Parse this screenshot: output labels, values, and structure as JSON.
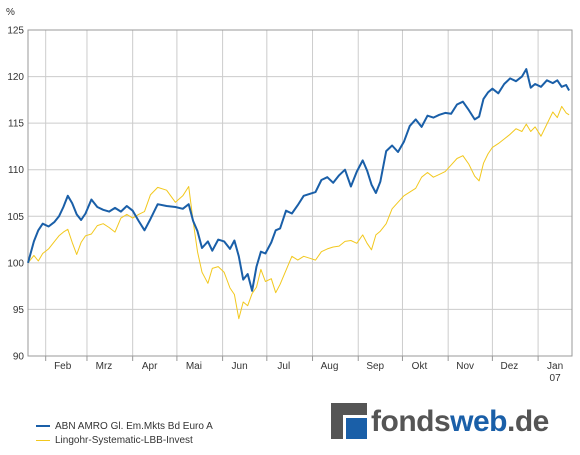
{
  "chart_data": {
    "type": "line",
    "ylabel": "%",
    "ylim": [
      90,
      125
    ],
    "yticks": [
      90,
      95,
      100,
      105,
      110,
      115,
      120,
      125
    ],
    "x_start": "2006-01-20",
    "x_end": "2007-01-24",
    "xticks": [
      {
        "label": "Feb",
        "date": "2006-02-01"
      },
      {
        "label": "Mrz",
        "date": "2006-03-01"
      },
      {
        "label": "Apr",
        "date": "2006-04-01"
      },
      {
        "label": "Mai",
        "date": "2006-05-01"
      },
      {
        "label": "Jun",
        "date": "2006-06-01"
      },
      {
        "label": "Jul",
        "date": "2006-07-01"
      },
      {
        "label": "Aug",
        "date": "2006-08-01"
      },
      {
        "label": "Sep",
        "date": "2006-09-01"
      },
      {
        "label": "Okt",
        "date": "2006-10-01"
      },
      {
        "label": "Nov",
        "date": "2006-11-01"
      },
      {
        "label": "Dez",
        "date": "2006-12-01"
      },
      {
        "label": "Jan",
        "sublabel": "07",
        "date": "2007-01-01"
      }
    ],
    "grid": true,
    "series": [
      {
        "name": "ABN AMRO Gl. Em.Mkts Bd Euro A",
        "color": "#1a5fa8",
        "points": [
          [
            "2006-01-20",
            100.0
          ],
          [
            "2006-01-24",
            102.3
          ],
          [
            "2006-01-27",
            103.5
          ],
          [
            "2006-01-30",
            104.2
          ],
          [
            "2006-02-03",
            103.9
          ],
          [
            "2006-02-07",
            104.4
          ],
          [
            "2006-02-10",
            105.0
          ],
          [
            "2006-02-13",
            106.0
          ],
          [
            "2006-02-16",
            107.2
          ],
          [
            "2006-02-19",
            106.4
          ],
          [
            "2006-02-22",
            105.2
          ],
          [
            "2006-02-25",
            104.6
          ],
          [
            "2006-02-28",
            105.3
          ],
          [
            "2006-03-04",
            106.8
          ],
          [
            "2006-03-08",
            106.0
          ],
          [
            "2006-03-12",
            105.7
          ],
          [
            "2006-03-16",
            105.5
          ],
          [
            "2006-03-20",
            105.9
          ],
          [
            "2006-03-24",
            105.5
          ],
          [
            "2006-03-28",
            106.1
          ],
          [
            "2006-04-01",
            105.6
          ],
          [
            "2006-04-05",
            104.5
          ],
          [
            "2006-04-09",
            103.5
          ],
          [
            "2006-04-13",
            104.7
          ],
          [
            "2006-04-18",
            106.3
          ],
          [
            "2006-04-24",
            106.1
          ],
          [
            "2006-04-30",
            106.0
          ],
          [
            "2006-05-05",
            105.8
          ],
          [
            "2006-05-09",
            106.3
          ],
          [
            "2006-05-12",
            104.5
          ],
          [
            "2006-05-15",
            103.4
          ],
          [
            "2006-05-18",
            101.6
          ],
          [
            "2006-05-22",
            102.3
          ],
          [
            "2006-05-25",
            101.3
          ],
          [
            "2006-05-29",
            102.5
          ],
          [
            "2006-06-02",
            102.3
          ],
          [
            "2006-06-06",
            101.5
          ],
          [
            "2006-06-09",
            102.4
          ],
          [
            "2006-06-12",
            100.7
          ],
          [
            "2006-06-15",
            98.2
          ],
          [
            "2006-06-18",
            98.8
          ],
          [
            "2006-06-21",
            97.0
          ],
          [
            "2006-06-24",
            99.6
          ],
          [
            "2006-06-27",
            101.2
          ],
          [
            "2006-06-30",
            101.0
          ],
          [
            "2006-07-04",
            102.2
          ],
          [
            "2006-07-07",
            103.5
          ],
          [
            "2006-07-10",
            103.7
          ],
          [
            "2006-07-14",
            105.6
          ],
          [
            "2006-07-18",
            105.3
          ],
          [
            "2006-07-22",
            106.2
          ],
          [
            "2006-07-26",
            107.2
          ],
          [
            "2006-07-30",
            107.4
          ],
          [
            "2006-08-03",
            107.6
          ],
          [
            "2006-08-07",
            108.9
          ],
          [
            "2006-08-11",
            109.2
          ],
          [
            "2006-08-15",
            108.6
          ],
          [
            "2006-08-19",
            109.4
          ],
          [
            "2006-08-23",
            110.0
          ],
          [
            "2006-08-27",
            108.2
          ],
          [
            "2006-08-31",
            109.8
          ],
          [
            "2006-09-04",
            111.0
          ],
          [
            "2006-09-07",
            109.9
          ],
          [
            "2006-09-10",
            108.4
          ],
          [
            "2006-09-13",
            107.5
          ],
          [
            "2006-09-16",
            108.7
          ],
          [
            "2006-09-20",
            112.0
          ],
          [
            "2006-09-24",
            112.6
          ],
          [
            "2006-09-28",
            111.9
          ],
          [
            "2006-10-02",
            113.0
          ],
          [
            "2006-10-06",
            114.7
          ],
          [
            "2006-10-10",
            115.4
          ],
          [
            "2006-10-14",
            114.6
          ],
          [
            "2006-10-18",
            115.8
          ],
          [
            "2006-10-22",
            115.6
          ],
          [
            "2006-10-26",
            115.9
          ],
          [
            "2006-10-30",
            116.1
          ],
          [
            "2006-11-03",
            116.0
          ],
          [
            "2006-11-07",
            117.0
          ],
          [
            "2006-11-11",
            117.3
          ],
          [
            "2006-11-15",
            116.4
          ],
          [
            "2006-11-19",
            115.4
          ],
          [
            "2006-11-22",
            115.7
          ],
          [
            "2006-11-25",
            117.6
          ],
          [
            "2006-11-28",
            118.3
          ],
          [
            "2006-12-01",
            118.7
          ],
          [
            "2006-12-05",
            118.2
          ],
          [
            "2006-12-09",
            119.2
          ],
          [
            "2006-12-13",
            119.8
          ],
          [
            "2006-12-17",
            119.5
          ],
          [
            "2006-12-21",
            120.0
          ],
          [
            "2006-12-24",
            120.8
          ],
          [
            "2006-12-27",
            118.8
          ],
          [
            "2006-12-30",
            119.2
          ],
          [
            "2007-01-03",
            118.9
          ],
          [
            "2007-01-07",
            119.6
          ],
          [
            "2007-01-11",
            119.3
          ],
          [
            "2007-01-14",
            119.6
          ],
          [
            "2007-01-17",
            118.9
          ],
          [
            "2007-01-20",
            119.1
          ],
          [
            "2007-01-22",
            118.5
          ]
        ]
      },
      {
        "name": "Lingohr-Systematic-LBB-Invest",
        "color": "#f2c81e",
        "points": [
          [
            "2006-01-20",
            100.0
          ],
          [
            "2006-01-24",
            100.8
          ],
          [
            "2006-01-27",
            100.2
          ],
          [
            "2006-01-30",
            101.0
          ],
          [
            "2006-02-03",
            101.5
          ],
          [
            "2006-02-07",
            102.3
          ],
          [
            "2006-02-10",
            102.9
          ],
          [
            "2006-02-13",
            103.3
          ],
          [
            "2006-02-16",
            103.6
          ],
          [
            "2006-02-19",
            102.2
          ],
          [
            "2006-02-22",
            100.9
          ],
          [
            "2006-02-25",
            102.2
          ],
          [
            "2006-02-28",
            102.9
          ],
          [
            "2006-03-04",
            103.1
          ],
          [
            "2006-03-08",
            104.0
          ],
          [
            "2006-03-12",
            104.2
          ],
          [
            "2006-03-16",
            103.8
          ],
          [
            "2006-03-20",
            103.3
          ],
          [
            "2006-03-24",
            104.8
          ],
          [
            "2006-03-28",
            105.2
          ],
          [
            "2006-04-01",
            104.8
          ],
          [
            "2006-04-05",
            105.2
          ],
          [
            "2006-04-09",
            105.5
          ],
          [
            "2006-04-13",
            107.3
          ],
          [
            "2006-04-18",
            108.1
          ],
          [
            "2006-04-24",
            107.8
          ],
          [
            "2006-04-30",
            106.5
          ],
          [
            "2006-05-05",
            107.2
          ],
          [
            "2006-05-09",
            108.2
          ],
          [
            "2006-05-12",
            104.5
          ],
          [
            "2006-05-15",
            101.2
          ],
          [
            "2006-05-18",
            99.0
          ],
          [
            "2006-05-22",
            97.8
          ],
          [
            "2006-05-25",
            99.4
          ],
          [
            "2006-05-29",
            99.6
          ],
          [
            "2006-06-02",
            99.0
          ],
          [
            "2006-06-06",
            97.3
          ],
          [
            "2006-06-09",
            96.6
          ],
          [
            "2006-06-12",
            94.0
          ],
          [
            "2006-06-15",
            95.8
          ],
          [
            "2006-06-18",
            95.4
          ],
          [
            "2006-06-21",
            96.7
          ],
          [
            "2006-06-24",
            97.4
          ],
          [
            "2006-06-27",
            99.3
          ],
          [
            "2006-06-30",
            98.0
          ],
          [
            "2006-07-04",
            98.3
          ],
          [
            "2006-07-07",
            96.8
          ],
          [
            "2006-07-10",
            97.7
          ],
          [
            "2006-07-14",
            99.2
          ],
          [
            "2006-07-18",
            100.7
          ],
          [
            "2006-07-22",
            100.3
          ],
          [
            "2006-07-26",
            100.7
          ],
          [
            "2006-07-30",
            100.5
          ],
          [
            "2006-08-03",
            100.3
          ],
          [
            "2006-08-07",
            101.2
          ],
          [
            "2006-08-11",
            101.5
          ],
          [
            "2006-08-15",
            101.7
          ],
          [
            "2006-08-19",
            101.8
          ],
          [
            "2006-08-23",
            102.3
          ],
          [
            "2006-08-27",
            102.4
          ],
          [
            "2006-08-31",
            102.1
          ],
          [
            "2006-09-04",
            103.0
          ],
          [
            "2006-09-07",
            102.1
          ],
          [
            "2006-09-10",
            101.4
          ],
          [
            "2006-09-13",
            103.0
          ],
          [
            "2006-09-16",
            103.4
          ],
          [
            "2006-09-20",
            104.2
          ],
          [
            "2006-09-24",
            105.8
          ],
          [
            "2006-09-28",
            106.5
          ],
          [
            "2006-10-02",
            107.2
          ],
          [
            "2006-10-06",
            107.6
          ],
          [
            "2006-10-10",
            108.0
          ],
          [
            "2006-10-14",
            109.2
          ],
          [
            "2006-10-18",
            109.7
          ],
          [
            "2006-10-22",
            109.2
          ],
          [
            "2006-10-26",
            109.5
          ],
          [
            "2006-10-30",
            109.8
          ],
          [
            "2006-11-03",
            110.5
          ],
          [
            "2006-11-07",
            111.2
          ],
          [
            "2006-11-11",
            111.5
          ],
          [
            "2006-11-15",
            110.6
          ],
          [
            "2006-11-19",
            109.3
          ],
          [
            "2006-11-22",
            108.8
          ],
          [
            "2006-11-25",
            110.7
          ],
          [
            "2006-11-28",
            111.7
          ],
          [
            "2006-12-01",
            112.4
          ],
          [
            "2006-12-05",
            112.8
          ],
          [
            "2006-12-09",
            113.3
          ],
          [
            "2006-12-13",
            113.8
          ],
          [
            "2006-12-17",
            114.4
          ],
          [
            "2006-12-21",
            114.1
          ],
          [
            "2006-12-24",
            114.9
          ],
          [
            "2006-12-27",
            114.1
          ],
          [
            "2006-12-30",
            114.6
          ],
          [
            "2007-01-03",
            113.6
          ],
          [
            "2007-01-07",
            114.9
          ],
          [
            "2007-01-11",
            116.2
          ],
          [
            "2007-01-14",
            115.6
          ],
          [
            "2007-01-17",
            116.8
          ],
          [
            "2007-01-20",
            116.1
          ],
          [
            "2007-01-22",
            115.9
          ]
        ]
      }
    ]
  },
  "legend": {
    "items": [
      {
        "label": "ABN AMRO Gl. Em.Mkts Bd Euro A",
        "color": "#1a5fa8"
      },
      {
        "label": "Lingohr-Systematic-LBB-Invest",
        "color": "#f2c81e"
      }
    ]
  },
  "branding": {
    "logo_part1": "fonds",
    "logo_part2": "web",
    "logo_part3": ".de"
  }
}
